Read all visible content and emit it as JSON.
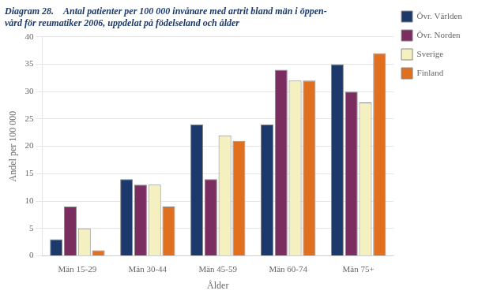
{
  "chart_data": {
    "type": "bar",
    "title": [
      "Diagram 28.    Antal patienter per 100 000 invånare med artrit bland män i öppen-",
      "vård för reumatiker 2006, uppdelat på födelseland och ålder"
    ],
    "categories": [
      "Män 15-29",
      "Män 30-44",
      "Män 45-59",
      "Män 60-74",
      "Män 75+"
    ],
    "series": [
      {
        "name": "Övr. Världen",
        "color": "#1B3A6B",
        "values": [
          3,
          14,
          24,
          24,
          35
        ]
      },
      {
        "name": "Övr. Norden",
        "color": "#7B2D60",
        "values": [
          9,
          13,
          14,
          34,
          30
        ]
      },
      {
        "name": "Sverige",
        "color": "#F5F0C0",
        "values": [
          5,
          13,
          22,
          32,
          28
        ]
      },
      {
        "name": "Finland",
        "color": "#E07020",
        "values": [
          1,
          9,
          21,
          32,
          37
        ]
      }
    ],
    "xlabel": "Ålder",
    "ylabel": "Andel per 100 000",
    "ylim": [
      0,
      40
    ],
    "yticks": [
      0,
      5,
      10,
      15,
      20,
      25,
      30,
      35,
      40
    ],
    "grid": true,
    "legend": "right"
  }
}
